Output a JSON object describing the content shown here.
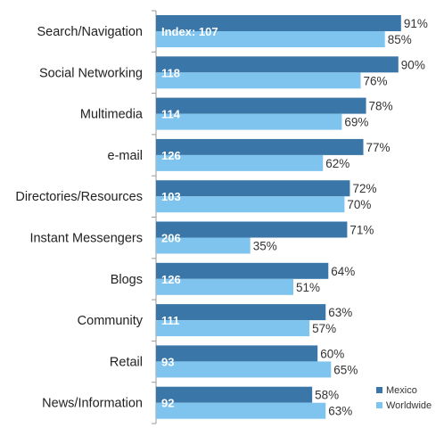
{
  "chart_data": {
    "type": "bar",
    "orientation": "horizontal",
    "categories": [
      "Search/Navigation",
      "Social Networking",
      "Multimedia",
      "e-mail",
      "Directories/Resources",
      "Instant Messengers",
      "Blogs",
      "Community",
      "Retail",
      "News/Information"
    ],
    "series": [
      {
        "name": "Mexico",
        "color": "#3a77a8",
        "values": [
          91,
          90,
          78,
          77,
          72,
          71,
          64,
          63,
          60,
          58
        ]
      },
      {
        "name": "Worldwide",
        "color": "#7fc4ee",
        "values": [
          85,
          76,
          69,
          62,
          70,
          35,
          51,
          57,
          65,
          63
        ]
      }
    ],
    "index_prefix": "Index: ",
    "index_values": [
      107,
      118,
      114,
      126,
      103,
      206,
      126,
      111,
      93,
      92
    ],
    "value_suffix": "%",
    "xlim": [
      0,
      100
    ],
    "legend_position": "bottom-right",
    "grid": false
  }
}
